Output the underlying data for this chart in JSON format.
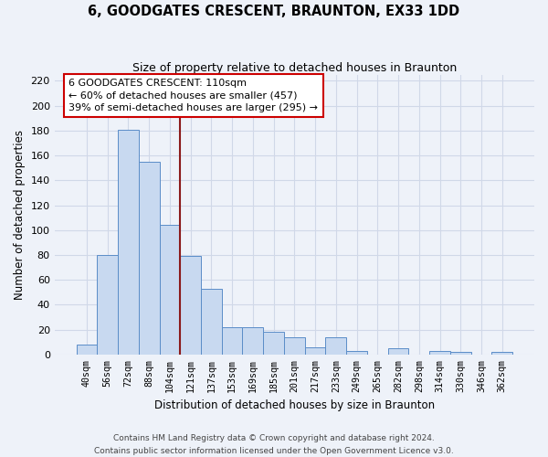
{
  "title": "6, GOODGATES CRESCENT, BRAUNTON, EX33 1DD",
  "subtitle": "Size of property relative to detached houses in Braunton",
  "xlabel": "Distribution of detached houses by size in Braunton",
  "ylabel": "Number of detached properties",
  "bar_labels": [
    "40sqm",
    "56sqm",
    "72sqm",
    "88sqm",
    "104sqm",
    "121sqm",
    "137sqm",
    "153sqm",
    "169sqm",
    "185sqm",
    "201sqm",
    "217sqm",
    "233sqm",
    "249sqm",
    "265sqm",
    "282sqm",
    "298sqm",
    "314sqm",
    "330sqm",
    "346sqm",
    "362sqm"
  ],
  "bar_values": [
    8,
    80,
    181,
    155,
    104,
    79,
    53,
    22,
    22,
    18,
    14,
    6,
    14,
    3,
    0,
    5,
    0,
    3,
    2,
    0,
    2
  ],
  "bar_color": "#c8d9f0",
  "bar_edge_color": "#5b8dc8",
  "grid_color": "#d0d8e8",
  "background_color": "#eef2f9",
  "vline_color": "#8b1a1a",
  "annotation_text": "6 GOODGATES CRESCENT: 110sqm\n← 60% of detached houses are smaller (457)\n39% of semi-detached houses are larger (295) →",
  "annotation_box_color": "#ffffff",
  "annotation_box_edge": "#cc0000",
  "ylim": [
    0,
    225
  ],
  "yticks": [
    0,
    20,
    40,
    60,
    80,
    100,
    120,
    140,
    160,
    180,
    200,
    220
  ],
  "footer1": "Contains HM Land Registry data © Crown copyright and database right 2024.",
  "footer2": "Contains public sector information licensed under the Open Government Licence v3.0."
}
